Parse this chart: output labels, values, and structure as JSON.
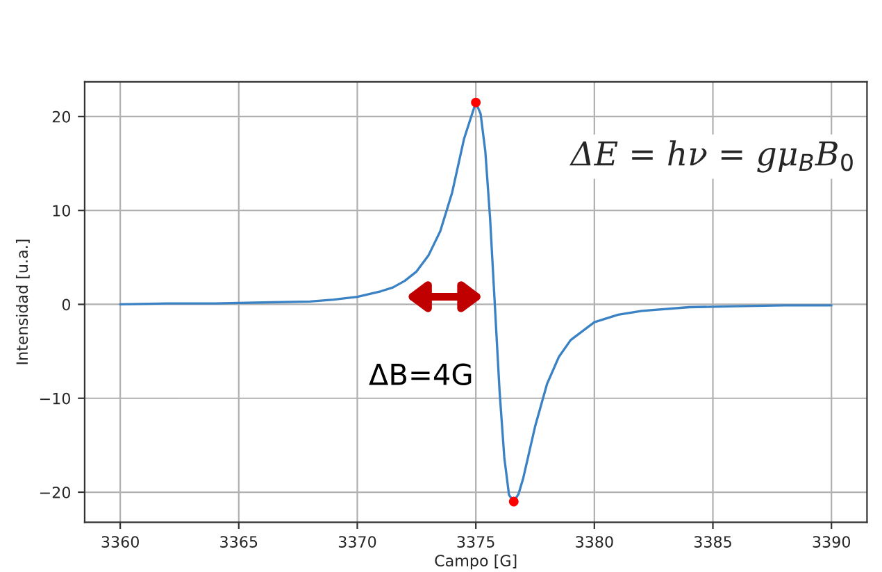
{
  "chart_data": {
    "type": "line",
    "xlabel": "Campo [G]",
    "ylabel": "Intensidad [u.a.]",
    "xlim": [
      3358.5,
      3391.5
    ],
    "xticks": [
      3360,
      3365,
      3370,
      3375,
      3380,
      3385,
      3390
    ],
    "ylim": [
      -23.2,
      23.7
    ],
    "yticks": [
      -20,
      -10,
      0,
      10,
      20
    ],
    "grid": true,
    "series": [
      {
        "color": "#3b82c4",
        "x": [
          3360,
          3362,
          3364,
          3366,
          3368,
          3369,
          3370,
          3371,
          3371.5,
          3372,
          3372.5,
          3373,
          3373.5,
          3374,
          3374.5,
          3375,
          3375.2,
          3375.4,
          3375.6,
          3375.8,
          3376,
          3376.2,
          3376.4,
          3376.6,
          3376.8,
          3377,
          3377.5,
          3378,
          3378.5,
          3379,
          3380,
          3381,
          3382,
          3384,
          3386,
          3388,
          3390
        ],
        "values": [
          0,
          0.1,
          0.1,
          0.2,
          0.3,
          0.5,
          0.8,
          1.4,
          1.8,
          2.5,
          3.5,
          5.2,
          7.8,
          11.9,
          17.6,
          21.5,
          20.3,
          16.3,
          9.2,
          0,
          -9.2,
          -16.3,
          -20.3,
          -21,
          -20.2,
          -18.5,
          -13,
          -8.5,
          -5.6,
          -3.8,
          -1.9,
          -1.1,
          -0.7,
          -0.3,
          -0.2,
          -0.1,
          -0.1
        ]
      },
      {
        "type": "scatter",
        "color": "#ff0000",
        "x": [
          3375,
          3376.6
        ],
        "values": [
          21.5,
          -21
        ]
      }
    ],
    "annotations": [
      "ΔB=4G",
      "ΔE = hν = gμ$_{B}$B$_{0}$"
    ]
  }
}
